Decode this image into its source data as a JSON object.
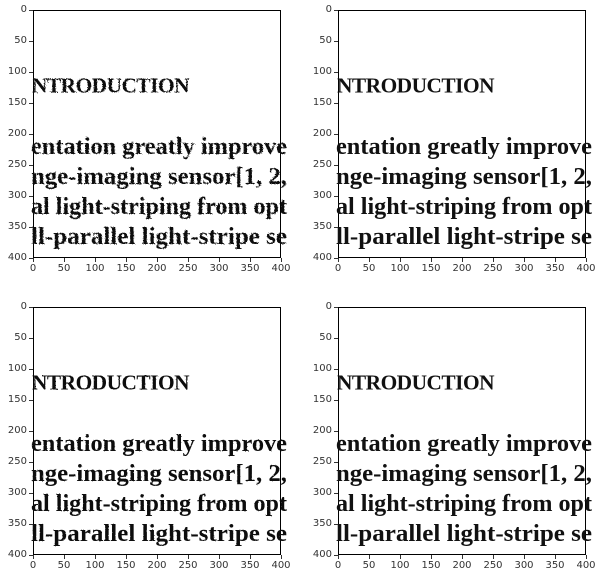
{
  "panels": [
    {
      "heading": "NTRODUCTION",
      "lines": [
        "entation greatly improve",
        "nge-imaging sensor[1, 2,",
        "al light-striping from opt",
        "ll-parallel light-stripe se"
      ]
    },
    {
      "heading": "NTRODUCTION",
      "lines": [
        "entation greatly improve",
        "nge-imaging sensor[1, 2,",
        "al light-striping from opt",
        "ll-parallel light-stripe se"
      ]
    },
    {
      "heading": "NTRODUCTION",
      "lines": [
        "entation greatly improve",
        "nge-imaging sensor[1, 2,",
        "al light-striping from opt",
        "ll-parallel light-stripe se"
      ]
    },
    {
      "heading": "NTRODUCTION",
      "lines": [
        "entation greatly improve",
        "nge-imaging sensor[1, 2,",
        "al light-striping from opt",
        "ll-parallel light-stripe se"
      ]
    }
  ],
  "axes": {
    "y_ticks": [
      "0",
      "50",
      "100",
      "150",
      "200",
      "250",
      "300",
      "350",
      "400"
    ],
    "x_ticks": [
      "0",
      "50",
      "100",
      "150",
      "200",
      "250",
      "300",
      "350",
      "400"
    ]
  }
}
